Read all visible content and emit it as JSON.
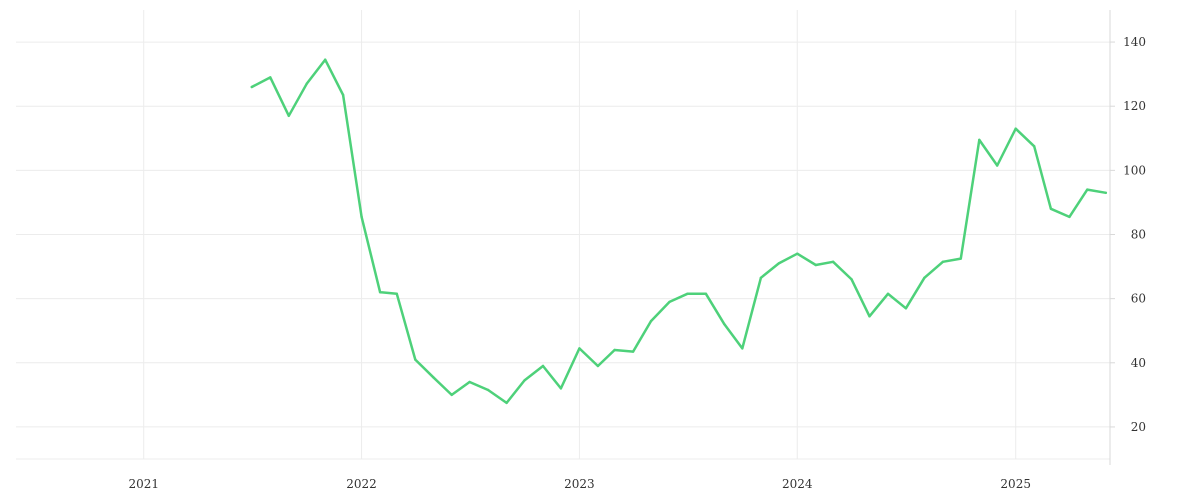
{
  "chart_data": {
    "type": "line",
    "title": "",
    "xlabel": "",
    "ylabel": "",
    "x_ticks": [
      "2021",
      "2022",
      "2023",
      "2024",
      "2025"
    ],
    "y_ticks": [
      20,
      40,
      60,
      80,
      100,
      120,
      140
    ],
    "xlim": [
      "2020-06-01",
      "2025-06-08"
    ],
    "ylim": [
      10,
      150
    ],
    "grid": true,
    "y_axis_side": "right",
    "series": [
      {
        "color": "#4ed17a",
        "points": [
          [
            "2021-07-01",
            126
          ],
          [
            "2021-08-01",
            129
          ],
          [
            "2021-09-01",
            117
          ],
          [
            "2021-10-01",
            127
          ],
          [
            "2021-11-01",
            134.5
          ],
          [
            "2021-12-01",
            123.5
          ],
          [
            "2022-01-01",
            85.5
          ],
          [
            "2022-02-01",
            62
          ],
          [
            "2022-03-01",
            61.5
          ],
          [
            "2022-04-01",
            41
          ],
          [
            "2022-05-01",
            35.5
          ],
          [
            "2022-06-01",
            30
          ],
          [
            "2022-07-01",
            34
          ],
          [
            "2022-08-01",
            31.5
          ],
          [
            "2022-09-01",
            27.5
          ],
          [
            "2022-10-01",
            34.5
          ],
          [
            "2022-11-01",
            39
          ],
          [
            "2022-12-01",
            32
          ],
          [
            "2023-01-01",
            44.5
          ],
          [
            "2023-02-01",
            39
          ],
          [
            "2023-03-01",
            44
          ],
          [
            "2023-04-01",
            43.5
          ],
          [
            "2023-05-01",
            53
          ],
          [
            "2023-06-01",
            59
          ],
          [
            "2023-07-01",
            61.5
          ],
          [
            "2023-08-01",
            61.5
          ],
          [
            "2023-09-01",
            52
          ],
          [
            "2023-10-01",
            44.5
          ],
          [
            "2023-11-01",
            66.5
          ],
          [
            "2023-12-01",
            71
          ],
          [
            "2024-01-01",
            74
          ],
          [
            "2024-02-01",
            70.5
          ],
          [
            "2024-03-01",
            71.5
          ],
          [
            "2024-04-01",
            66
          ],
          [
            "2024-05-01",
            54.5
          ],
          [
            "2024-06-01",
            61.5
          ],
          [
            "2024-07-01",
            57
          ],
          [
            "2024-08-01",
            66.5
          ],
          [
            "2024-09-01",
            71.5
          ],
          [
            "2024-10-01",
            72.5
          ],
          [
            "2024-11-01",
            109.5
          ],
          [
            "2024-12-01",
            101.5
          ],
          [
            "2025-01-01",
            113
          ],
          [
            "2025-02-01",
            107.5
          ],
          [
            "2025-03-01",
            88
          ],
          [
            "2025-04-01",
            85.5
          ],
          [
            "2025-05-01",
            94
          ],
          [
            "2025-06-01",
            93
          ]
        ]
      }
    ]
  }
}
